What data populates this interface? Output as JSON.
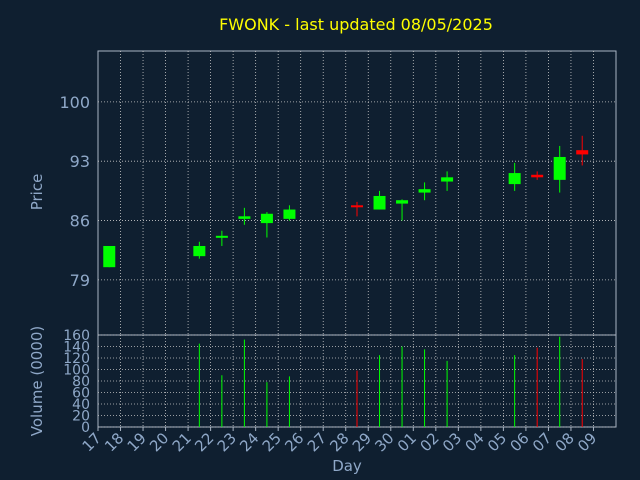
{
  "chart_data": [
    {
      "type": "candlestick",
      "title": "FWONK - last updated 08/05/2025",
      "ylabel": "Price",
      "ylim": [
        72.5,
        106
      ],
      "yticks": [
        79,
        86,
        93,
        100
      ],
      "x_categories": [
        "17",
        "18",
        "19",
        "20",
        "21",
        "22",
        "23",
        "24",
        "25",
        "26",
        "27",
        "28",
        "29",
        "30",
        "01",
        "02",
        "03",
        "04",
        "05",
        "06",
        "07",
        "08",
        "09"
      ],
      "grid": true,
      "colors": {
        "up": "#00ff00",
        "down": "#ff0000",
        "background": "#0f1f30",
        "grid": "#c8c8c8"
      },
      "candles": [
        {
          "day": "17",
          "open": 80.5,
          "high": 83.0,
          "low": 80.5,
          "close": 83.0,
          "dir": "up"
        },
        {
          "day": "21",
          "open": 81.8,
          "high": 83.5,
          "low": 81.5,
          "close": 83.0,
          "dir": "up"
        },
        {
          "day": "22",
          "open": 84.0,
          "high": 84.8,
          "low": 83.0,
          "close": 84.2,
          "dir": "up"
        },
        {
          "day": "23",
          "open": 86.2,
          "high": 87.5,
          "low": 85.5,
          "close": 86.5,
          "dir": "up"
        },
        {
          "day": "24",
          "open": 85.7,
          "high": 87.0,
          "low": 84.0,
          "close": 86.8,
          "dir": "up"
        },
        {
          "day": "25",
          "open": 86.2,
          "high": 87.8,
          "low": 86.0,
          "close": 87.3,
          "dir": "up"
        },
        {
          "day": "28",
          "open": 87.8,
          "high": 88.2,
          "low": 86.5,
          "close": 87.6,
          "dir": "down"
        },
        {
          "day": "29",
          "open": 87.3,
          "high": 89.5,
          "low": 87.3,
          "close": 88.9,
          "dir": "up"
        },
        {
          "day": "30",
          "open": 88.0,
          "high": 88.5,
          "low": 86.0,
          "close": 88.4,
          "dir": "up"
        },
        {
          "day": "01",
          "open": 89.3,
          "high": 90.5,
          "low": 88.4,
          "close": 89.7,
          "dir": "up"
        },
        {
          "day": "02",
          "open": 90.6,
          "high": 91.8,
          "low": 89.5,
          "close": 91.1,
          "dir": "up"
        },
        {
          "day": "05",
          "open": 90.3,
          "high": 92.8,
          "low": 89.5,
          "close": 91.6,
          "dir": "up"
        },
        {
          "day": "06",
          "open": 91.4,
          "high": 91.8,
          "low": 90.8,
          "close": 91.1,
          "dir": "down"
        },
        {
          "day": "07",
          "open": 90.8,
          "high": 94.8,
          "low": 89.3,
          "close": 93.5,
          "dir": "up"
        },
        {
          "day": "08",
          "open": 94.3,
          "high": 96.0,
          "low": 92.5,
          "close": 93.8,
          "dir": "down"
        }
      ]
    },
    {
      "type": "bar",
      "ylabel": "Volume (0000)",
      "xlabel": "Day",
      "ylim": [
        0,
        160
      ],
      "yticks": [
        0,
        20,
        40,
        60,
        80,
        100,
        120,
        140,
        160
      ],
      "x_categories": [
        "17",
        "18",
        "19",
        "20",
        "21",
        "22",
        "23",
        "24",
        "25",
        "26",
        "27",
        "28",
        "29",
        "30",
        "01",
        "02",
        "03",
        "04",
        "05",
        "06",
        "07",
        "08",
        "09"
      ],
      "volumes": [
        {
          "day": "21",
          "value": 145,
          "dir": "up"
        },
        {
          "day": "22",
          "value": 90,
          "dir": "up"
        },
        {
          "day": "23",
          "value": 152,
          "dir": "up"
        },
        {
          "day": "24",
          "value": 78,
          "dir": "up"
        },
        {
          "day": "25",
          "value": 88,
          "dir": "up"
        },
        {
          "day": "28",
          "value": 98,
          "dir": "down"
        },
        {
          "day": "29",
          "value": 125,
          "dir": "up"
        },
        {
          "day": "30",
          "value": 140,
          "dir": "up"
        },
        {
          "day": "01",
          "value": 135,
          "dir": "up"
        },
        {
          "day": "02",
          "value": 115,
          "dir": "up"
        },
        {
          "day": "05",
          "value": 125,
          "dir": "up"
        },
        {
          "day": "06",
          "value": 138,
          "dir": "down"
        },
        {
          "day": "07",
          "value": 157,
          "dir": "up"
        },
        {
          "day": "08",
          "value": 118,
          "dir": "down"
        }
      ]
    }
  ]
}
